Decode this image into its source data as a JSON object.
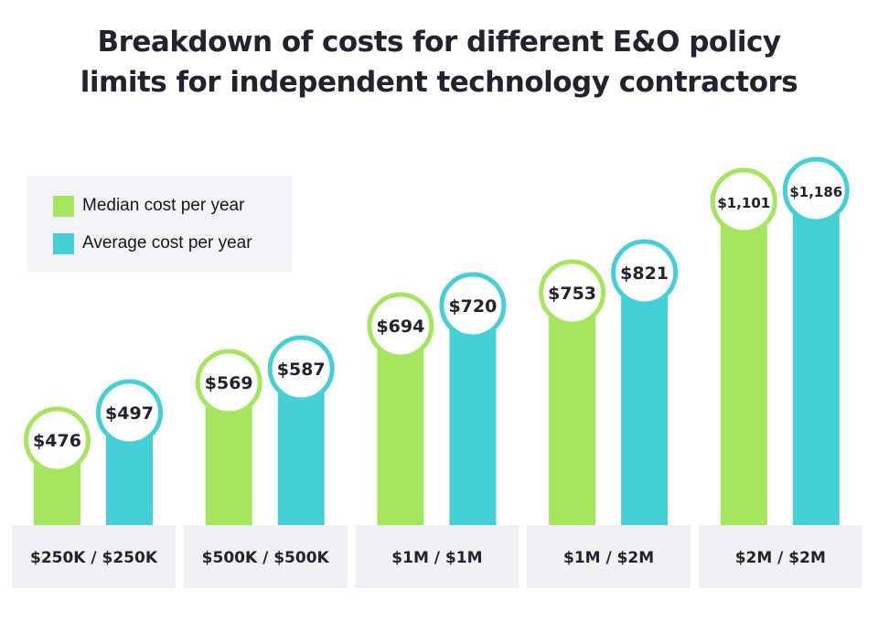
{
  "chart_data": {
    "type": "bar",
    "title": "Breakdown of costs for different E&O policy limits for independent technology contractors",
    "title_lines": [
      "Breakdown of costs for different E&O policy",
      "limits for independent technology contractors"
    ],
    "xlabel": "",
    "ylabel": "",
    "grid": false,
    "legend_position": "top-left",
    "categories": [
      "$250K / $250K",
      "$500K / $500K",
      "$1M / $1M",
      "$1M / $2M",
      "$2M / $2M"
    ],
    "series": [
      {
        "name": "Median cost per year",
        "color": "#a6e65e",
        "values": [
          476,
          569,
          694,
          753,
          1101
        ],
        "labels": [
          "$476",
          "$569",
          "$694",
          "$753",
          "$1,101"
        ]
      },
      {
        "name": "Average cost per year",
        "color": "#45d0d8",
        "values": [
          497,
          587,
          720,
          821,
          1186
        ],
        "labels": [
          "$497",
          "$587",
          "$720",
          "$821",
          "$1,186"
        ]
      }
    ],
    "colors": {
      "text": "#222230",
      "category_box": "#eff1f5",
      "legend_box": "#f4f4f8",
      "circle_fill": "#ffffff"
    }
  }
}
